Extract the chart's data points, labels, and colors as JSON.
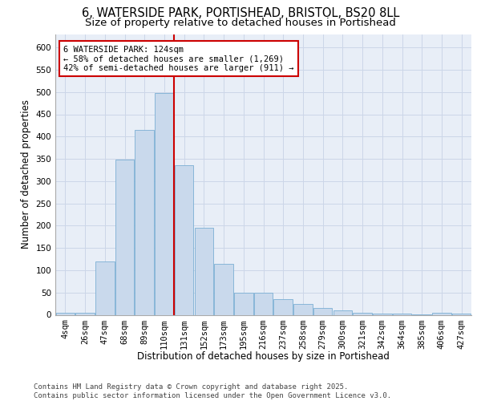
{
  "title_line1": "6, WATERSIDE PARK, PORTISHEAD, BRISTOL, BS20 8LL",
  "title_line2": "Size of property relative to detached houses in Portishead",
  "xlabel": "Distribution of detached houses by size in Portishead",
  "ylabel": "Number of detached properties",
  "categories": [
    "4sqm",
    "26sqm",
    "47sqm",
    "68sqm",
    "89sqm",
    "110sqm",
    "131sqm",
    "152sqm",
    "173sqm",
    "195sqm",
    "216sqm",
    "237sqm",
    "258sqm",
    "279sqm",
    "300sqm",
    "321sqm",
    "342sqm",
    "364sqm",
    "385sqm",
    "406sqm",
    "427sqm"
  ],
  "values": [
    5,
    5,
    120,
    348,
    415,
    497,
    335,
    195,
    115,
    50,
    50,
    35,
    25,
    15,
    10,
    5,
    3,
    2,
    1,
    5,
    2
  ],
  "bar_color": "#c9d9ec",
  "bar_edge_color": "#7bafd4",
  "highlight_line_color": "#cc0000",
  "annotation_text": "6 WATERSIDE PARK: 124sqm\n← 58% of detached houses are smaller (1,269)\n42% of semi-detached houses are larger (911) →",
  "annotation_box_color": "#ffffff",
  "annotation_box_edge_color": "#cc0000",
  "ylim": [
    0,
    630
  ],
  "yticks": [
    0,
    50,
    100,
    150,
    200,
    250,
    300,
    350,
    400,
    450,
    500,
    550,
    600
  ],
  "grid_color": "#ccd6e8",
  "background_color": "#e8eef7",
  "footer_text": "Contains HM Land Registry data © Crown copyright and database right 2025.\nContains public sector information licensed under the Open Government Licence v3.0.",
  "title_fontsize": 10.5,
  "subtitle_fontsize": 9.5,
  "axis_label_fontsize": 8.5,
  "tick_fontsize": 7.5,
  "annotation_fontsize": 7.5,
  "footer_fontsize": 6.5
}
